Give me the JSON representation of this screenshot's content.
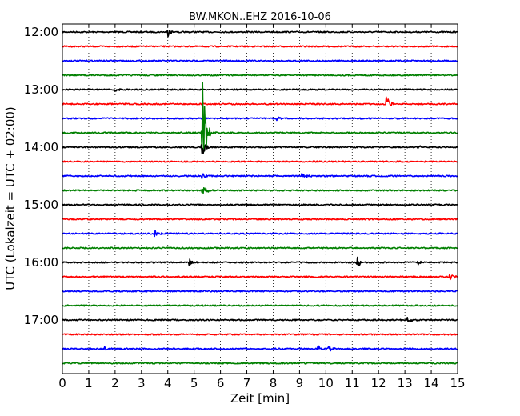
{
  "chart_data": {
    "type": "line",
    "title": "BW.MKON..EHZ 2016-10-06",
    "xlabel": "Zeit  [min]",
    "ylabel": "UTC (Lokalzeit = UTC + 02:00)",
    "xlim": [
      0,
      15
    ],
    "x_ticks": [
      0,
      1,
      2,
      3,
      4,
      5,
      6,
      7,
      8,
      9,
      10,
      11,
      12,
      13,
      14,
      15
    ],
    "y_ticks": [
      "12:00",
      "13:00",
      "14:00",
      "15:00",
      "16:00",
      "17:00"
    ],
    "trace_interval_minutes": 15,
    "start_time": "12:00",
    "grid": "vertical-dotted",
    "colors": [
      "#000000",
      "#ff0000",
      "#0000ff",
      "#008000"
    ],
    "traces": [
      {
        "time": "12:00",
        "color": "#000000",
        "events": [
          {
            "t": 4.0,
            "amp": 0.3
          }
        ]
      },
      {
        "time": "12:15",
        "color": "#ff0000",
        "events": []
      },
      {
        "time": "12:30",
        "color": "#0000ff",
        "events": []
      },
      {
        "time": "12:45",
        "color": "#008000",
        "events": []
      },
      {
        "time": "13:00",
        "color": "#000000",
        "events": [
          {
            "t": 2.0,
            "amp": 0.25
          }
        ]
      },
      {
        "time": "13:15",
        "color": "#ff0000",
        "events": [
          {
            "t": 12.3,
            "amp": 0.7
          }
        ]
      },
      {
        "time": "13:30",
        "color": "#0000ff",
        "events": [
          {
            "t": 8.1,
            "amp": 0.15
          }
        ]
      },
      {
        "time": "13:45",
        "color": "#008000",
        "events": [
          {
            "t": 5.3,
            "amp": 4.2
          }
        ]
      },
      {
        "time": "14:00",
        "color": "#000000",
        "events": [
          {
            "t": 5.3,
            "amp": 0.8
          },
          {
            "t": 13.5,
            "amp": 0.15
          }
        ]
      },
      {
        "time": "14:15",
        "color": "#ff0000",
        "events": []
      },
      {
        "time": "14:30",
        "color": "#0000ff",
        "events": [
          {
            "t": 5.3,
            "amp": 0.2
          },
          {
            "t": 9.1,
            "amp": 0.25
          }
        ]
      },
      {
        "time": "14:45",
        "color": "#008000",
        "events": [
          {
            "t": 5.3,
            "amp": 0.7
          }
        ]
      },
      {
        "time": "15:00",
        "color": "#000000",
        "events": []
      },
      {
        "time": "15:15",
        "color": "#ff0000",
        "events": []
      },
      {
        "time": "15:30",
        "color": "#0000ff",
        "events": [
          {
            "t": 3.5,
            "amp": 0.3
          }
        ]
      },
      {
        "time": "15:45",
        "color": "#008000",
        "events": []
      },
      {
        "time": "16:00",
        "color": "#000000",
        "events": [
          {
            "t": 4.8,
            "amp": 0.3
          },
          {
            "t": 11.2,
            "amp": 0.45
          },
          {
            "t": 13.5,
            "amp": 0.15
          }
        ]
      },
      {
        "time": "16:15",
        "color": "#ff0000",
        "events": [
          {
            "t": 14.7,
            "amp": 0.25
          }
        ]
      },
      {
        "time": "16:30",
        "color": "#0000ff",
        "events": []
      },
      {
        "time": "16:45",
        "color": "#008000",
        "events": []
      },
      {
        "time": "17:00",
        "color": "#000000",
        "events": [
          {
            "t": 13.1,
            "amp": 0.3
          }
        ]
      },
      {
        "time": "17:15",
        "color": "#ff0000",
        "events": []
      },
      {
        "time": "17:30",
        "color": "#0000ff",
        "events": [
          {
            "t": 1.6,
            "amp": 0.15
          },
          {
            "t": 9.7,
            "amp": 0.25
          },
          {
            "t": 10.1,
            "amp": 0.3
          }
        ]
      },
      {
        "time": "17:45",
        "color": "#008000",
        "events": []
      }
    ]
  }
}
